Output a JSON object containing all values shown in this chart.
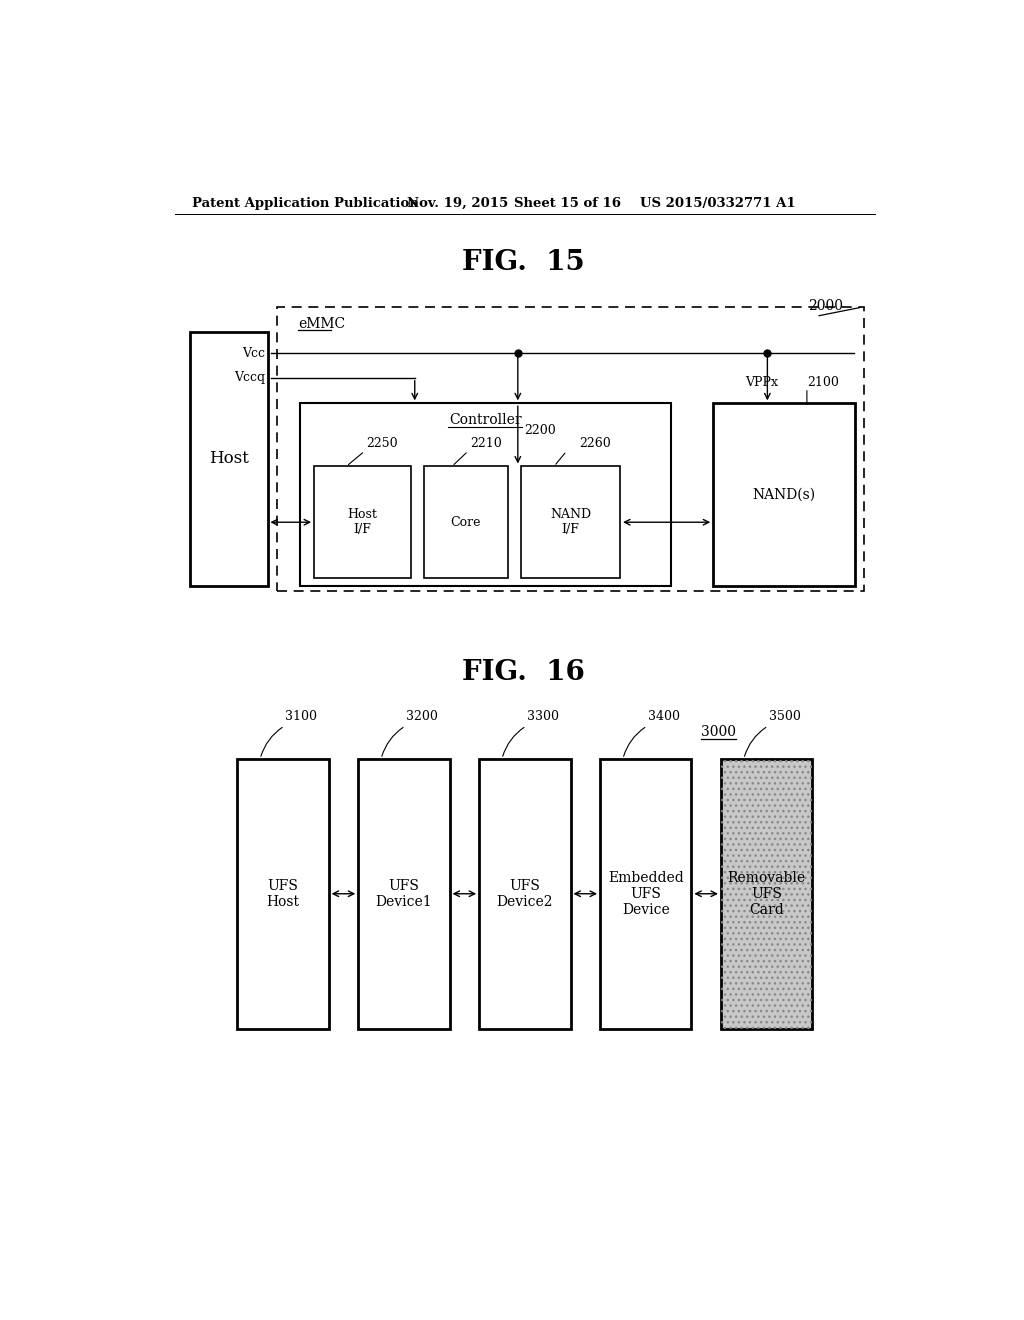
{
  "header_text": "Patent Application Publication",
  "header_date": "Nov. 19, 2015",
  "header_sheet": "Sheet 15 of 16",
  "header_patent": "US 2015/0332771 A1",
  "fig15_title": "FIG.  15",
  "fig16_title": "FIG.  16",
  "bg_color": "#ffffff",
  "line_color": "#000000",
  "fig15": {
    "label_2000": "2000",
    "label_emmc": "eMMC",
    "label_vcc": "Vcc",
    "label_vccq": "Vccq",
    "label_vppx": "VPPx",
    "label_2100": "2100",
    "label_2200": "2200",
    "label_controller": "Controller",
    "label_2250": "2250",
    "label_2210": "2210",
    "label_2260": "2260",
    "label_host_if": "Host\nI/F",
    "label_core": "Core",
    "label_nand_if": "NAND\nI/F",
    "label_nands": "NAND(s)",
    "label_host": "Host"
  },
  "fig16": {
    "label_3000": "3000",
    "label_3100": "3100",
    "label_3200": "3200",
    "label_3300": "3300",
    "label_3400": "3400",
    "label_3500": "3500",
    "label_ufs_host": "UFS\nHost",
    "label_ufs_device1": "UFS\nDevice1",
    "label_ufs_device2": "UFS\nDevice2",
    "label_embedded_ufs": "Embedded\nUFS\nDevice",
    "label_removable_ufs": "Removable\nUFS\nCard"
  }
}
